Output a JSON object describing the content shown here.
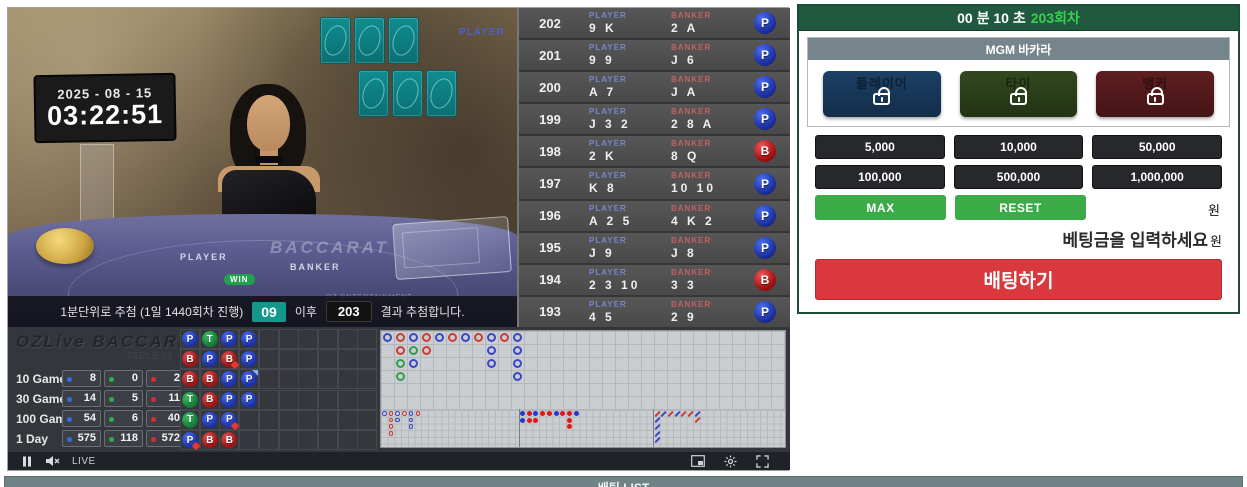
{
  "colors": {
    "player_blue": "#1c31a2",
    "banker_red": "#a31212",
    "tie_green": "#2f9e4f",
    "timer_bar_green": "#215940",
    "round_text_green": "#35d24a",
    "action_green": "#3bab47",
    "bet_button_red": "#d9383c",
    "panel_border_green": "#1d4d34"
  },
  "video": {
    "date": "2025 - 08 - 15",
    "time": "03:22:51",
    "player_overlay": "PLAYER",
    "banker_overlay": "BANKER",
    "table": {
      "player": "PLAYER",
      "banker": "BANKER",
      "brand": "BACCARAT",
      "win": "WIN",
      "ent": "OZ ENTERTAINMENT"
    },
    "overlay": {
      "prefix": "1분단위로 추첨 (1일 1440회차 진행)",
      "badge1": "09",
      "middle": "이후",
      "badge2": "203",
      "suffix": "결과 추첨합니다."
    },
    "controls": {
      "live": "LIVE"
    }
  },
  "results": {
    "player_header": "PLAYER",
    "banker_header": "BANKER",
    "rows": [
      {
        "round": "202",
        "player": "9 K",
        "banker": "2 A",
        "result": "P"
      },
      {
        "round": "201",
        "player": "9 9",
        "banker": "J 6",
        "result": "P"
      },
      {
        "round": "200",
        "player": "A 7",
        "banker": "J A",
        "result": "P"
      },
      {
        "round": "199",
        "player": "J 3 2",
        "banker": "2 8 A",
        "result": "P"
      },
      {
        "round": "198",
        "player": "2 K",
        "banker": "8 Q",
        "result": "B"
      },
      {
        "round": "197",
        "player": "K 8",
        "banker": "10 10",
        "result": "P"
      },
      {
        "round": "196",
        "player": "A 2 5",
        "banker": "4 K 2",
        "result": "P"
      },
      {
        "round": "195",
        "player": "J 9",
        "banker": "J 8",
        "result": "P"
      },
      {
        "round": "194",
        "player": "2 3 10",
        "banker": "3 3",
        "result": "B"
      },
      {
        "round": "193",
        "player": "4 5",
        "banker": "2 9",
        "result": "P"
      }
    ]
  },
  "scoreboard": {
    "brand": "OZLive BACCARAT",
    "table": "TABLE 01",
    "stats": [
      {
        "label": "10 Game",
        "p": "8",
        "t": "0",
        "b": "2"
      },
      {
        "label": "30 Game",
        "p": "14",
        "t": "5",
        "b": "11"
      },
      {
        "label": "100 Game",
        "p": "54",
        "t": "6",
        "b": "40"
      },
      {
        "label": "1 Day",
        "p": "575",
        "t": "118",
        "b": "572"
      }
    ],
    "bead_road": [
      [
        "P",
        "T",
        "P",
        "P"
      ],
      [
        "B",
        "P",
        "B.",
        "P"
      ],
      [
        "B",
        "B",
        "P",
        "P^"
      ],
      [
        "T",
        "B",
        "P",
        "P"
      ],
      [
        "T",
        "P",
        "P."
      ],
      [
        "P.",
        "B",
        "B"
      ]
    ],
    "big_road": [
      [
        "P"
      ],
      [
        "B",
        "B",
        "T",
        "T"
      ],
      [
        "P",
        "T",
        "P"
      ],
      [
        "B",
        "B"
      ],
      [
        "P"
      ],
      [
        "B"
      ],
      [
        "P"
      ],
      [
        "B"
      ],
      [
        "P",
        "P",
        "P"
      ],
      [
        "B"
      ],
      [
        "P",
        "P",
        "P",
        "P"
      ]
    ],
    "big_eye_road": [
      [
        "P"
      ],
      [
        "B",
        "B",
        "B",
        "B"
      ],
      [
        "P",
        "P"
      ],
      [
        "B"
      ],
      [
        "P",
        "P",
        "P"
      ],
      [
        "B"
      ]
    ],
    "small_road": [
      [
        "P",
        "P"
      ],
      [
        "B",
        "B"
      ],
      [
        "P",
        "B"
      ],
      [
        "B"
      ],
      [
        "B"
      ],
      [
        "P"
      ],
      [
        "B"
      ],
      [
        "B",
        "B",
        "B"
      ],
      [
        "P"
      ]
    ],
    "cockroach_road": [
      {
        "c": 1,
        "r": 1,
        "v": "B"
      },
      {
        "c": 2,
        "r": 1,
        "v": "P"
      },
      {
        "c": 3,
        "r": 1,
        "v": "B"
      },
      {
        "c": 4,
        "r": 1,
        "v": "P"
      },
      {
        "c": 5,
        "r": 1,
        "v": "B"
      },
      {
        "c": 6,
        "r": 1,
        "v": "B"
      },
      {
        "c": 7,
        "r": 1,
        "v": "P"
      },
      {
        "c": 7,
        "r": 2,
        "v": "B"
      },
      {
        "c": 1,
        "r": 2,
        "v": "P"
      },
      {
        "c": 1,
        "r": 3,
        "v": "P"
      },
      {
        "c": 1,
        "r": 4,
        "v": "P"
      },
      {
        "c": 1,
        "r": 5,
        "v": "P"
      }
    ]
  },
  "betting": {
    "timer": {
      "time_text": "00 분 10 초",
      "round_text": "203회차"
    },
    "game_title": "MGM 바카라",
    "bets": [
      {
        "type": "player",
        "label": "플레이어"
      },
      {
        "type": "tie",
        "label": "타이"
      },
      {
        "type": "banker",
        "label": "뱅커"
      }
    ],
    "chips": [
      "5,000",
      "10,000",
      "50,000",
      "100,000",
      "500,000",
      "1,000,000"
    ],
    "max_label": "MAX",
    "reset_label": "RESET",
    "currency": "원",
    "input_placeholder": "베팅금을 입력하세요",
    "bet_button": "배팅하기"
  },
  "bet_list": {
    "title": "배팅 LIST"
  }
}
